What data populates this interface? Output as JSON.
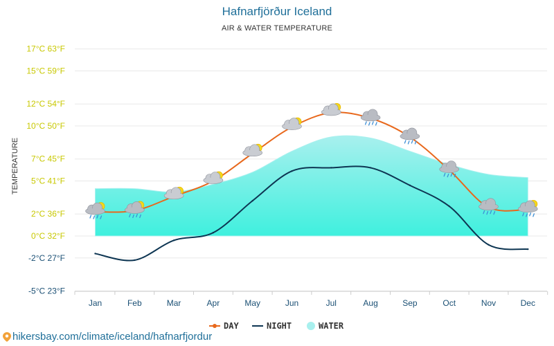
{
  "header": {
    "title": "Hafnarfjörður Iceland",
    "subtitle": "AIR & WATER TEMPERATURE"
  },
  "footer": {
    "link_text": "hikersbay.com/climate/iceland/hafnarfjordur"
  },
  "colors": {
    "day": "#e8681c",
    "night": "#0d3552",
    "water_top": "#a8f0ee",
    "water_bottom": "#3ff0de",
    "tick_warm": "#c8c800",
    "tick_cool": "#1a4f74",
    "grid": "#e8e8e8"
  },
  "chart_data": {
    "type": "line",
    "ylabel": "TEMPERATURE",
    "categories": [
      "Jan",
      "Feb",
      "Mar",
      "Apr",
      "May",
      "Jun",
      "Jul",
      "Aug",
      "Sep",
      "Oct",
      "Nov",
      "Dec"
    ],
    "yticks": [
      {
        "value": 17,
        "label": "17°C 63°F"
      },
      {
        "value": 15,
        "label": "15°C 59°F"
      },
      {
        "value": 12,
        "label": "12°C 54°F"
      },
      {
        "value": 10,
        "label": "10°C 50°F"
      },
      {
        "value": 7,
        "label": "7°C 45°F"
      },
      {
        "value": 5,
        "label": "5°C 41°F"
      },
      {
        "value": 2,
        "label": "2°C 36°F"
      },
      {
        "value": 0,
        "label": "0°C 32°F"
      },
      {
        "value": -2,
        "label": "-2°C 27°F"
      },
      {
        "value": -5,
        "label": "-5°C 23°F"
      }
    ],
    "ylim": [
      -5,
      17
    ],
    "grid": true,
    "legend_position": "bottom-center",
    "series": [
      {
        "name": "DAY",
        "style": "line",
        "values": [
          2.2,
          2.3,
          3.6,
          5.0,
          7.5,
          9.9,
          11.2,
          10.7,
          9.0,
          6.0,
          2.6,
          2.4
        ]
      },
      {
        "name": "NIGHT",
        "style": "line",
        "values": [
          -1.6,
          -2.2,
          -0.4,
          0.3,
          3.2,
          5.9,
          6.2,
          6.2,
          4.6,
          2.7,
          -0.8,
          -1.2
        ]
      },
      {
        "name": "WATER",
        "style": "area",
        "values": [
          4.3,
          4.3,
          4.0,
          4.7,
          5.8,
          7.7,
          9.0,
          8.9,
          7.7,
          6.5,
          5.6,
          5.3
        ]
      }
    ],
    "weather_icons": [
      "cloud-rain-sun-icon",
      "cloud-rain-sun-icon",
      "cloud-sun-icon",
      "cloud-sun-icon",
      "cloud-sun-icon",
      "cloud-sun-icon",
      "cloud-sun-icon",
      "cloud-rain-icon",
      "cloud-rain-icon",
      "cloud-rain-icon",
      "cloud-rain-icon",
      "cloud-rain-sun-icon"
    ]
  }
}
